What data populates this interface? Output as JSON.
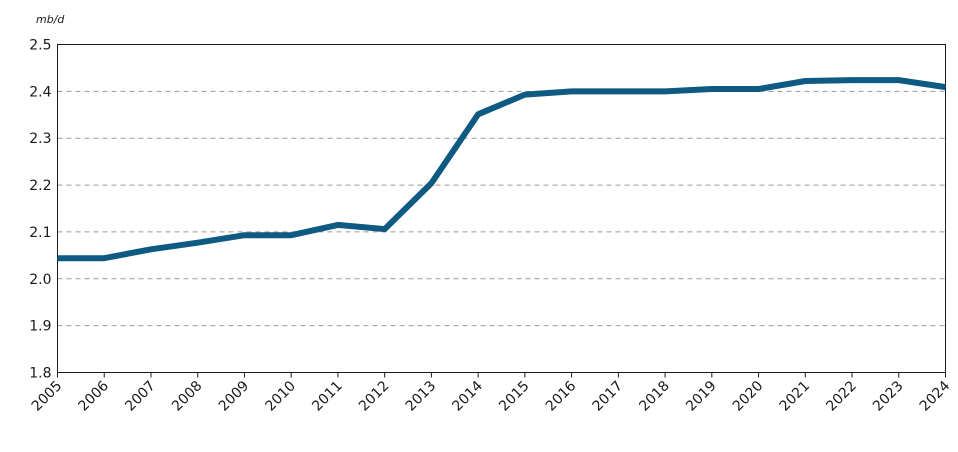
{
  "chart_data": {
    "type": "line",
    "unit_label": "mb/d",
    "x": [
      "2005",
      "2006",
      "2007",
      "2008",
      "2009",
      "2010",
      "2011",
      "2012",
      "2013",
      "2014",
      "2015",
      "2016",
      "2017",
      "2018",
      "2019",
      "2020",
      "2021",
      "2022",
      "2023",
      "2024"
    ],
    "series": [
      {
        "values": [
          2.044,
          2.044,
          2.063,
          2.077,
          2.093,
          2.093,
          2.115,
          2.106,
          2.204,
          2.351,
          2.393,
          2.4,
          2.4,
          2.4,
          2.405,
          2.405,
          2.422,
          2.424,
          2.424,
          2.409
        ],
        "color": "#0e5a82"
      }
    ],
    "yticks": [
      "1.8",
      "1.9",
      "2.0",
      "2.1",
      "2.2",
      "2.3",
      "2.4",
      "2.5"
    ],
    "ylim": [
      1.8,
      2.5
    ],
    "grid": "horizontal dashed",
    "legend": "none"
  }
}
